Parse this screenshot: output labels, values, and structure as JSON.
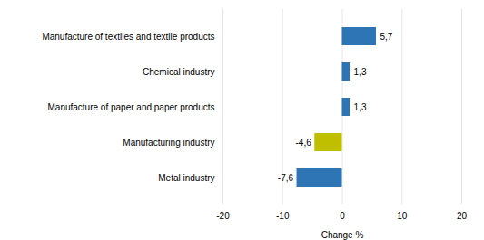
{
  "chart_data": {
    "type": "bar",
    "orientation": "horizontal",
    "categories": [
      "Metal industry",
      "Manufacturing industry",
      "Manufacture of paper and paper products",
      "Chemical industry",
      "Manufacture of textiles and textile products"
    ],
    "values": [
      -7.6,
      -4.6,
      1.3,
      1.3,
      5.7
    ],
    "value_labels": [
      "-7,6",
      "-4,6",
      "1,3",
      "1,3",
      "5,7"
    ],
    "data_labels": true,
    "colors": [
      "#2E75B6",
      "#BFBF00",
      "#2E75B6",
      "#2E75B6",
      "#2E75B6"
    ],
    "xlabel": "Change %",
    "xlim": [
      -20,
      20
    ],
    "xticks": [
      -20,
      -10,
      0,
      10,
      20
    ],
    "grid": true
  }
}
